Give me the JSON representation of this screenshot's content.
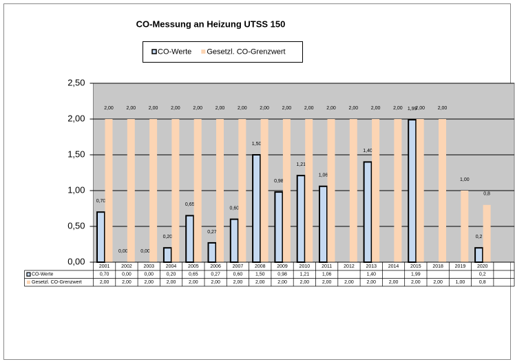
{
  "chart_data": {
    "type": "bar",
    "title": "CO-Messung an Heizung UTSS 150",
    "categories": [
      "2001",
      "2002",
      "2003",
      "2004",
      "2005",
      "2006",
      "2007",
      "2008",
      "2009",
      "2010",
      "2011",
      "2012",
      "2013",
      "2014",
      "2015",
      "2018",
      "2019",
      "2020"
    ],
    "series": [
      {
        "name": "CO-Werte",
        "color": "#c5d9f1",
        "values": [
          0.7,
          0.0,
          0.0,
          0.2,
          0.65,
          0.27,
          0.6,
          1.5,
          0.98,
          1.21,
          1.06,
          null,
          1.4,
          null,
          1.99,
          null,
          null,
          0.2
        ],
        "value_labels": [
          "0,70",
          "0,00",
          "0,00",
          "0,20",
          "0,65",
          "0,27",
          "0,60",
          "1,50",
          "0,98",
          "1,21",
          "1,06",
          null,
          "1,40",
          null,
          "1,99",
          null,
          null,
          "0,2"
        ]
      },
      {
        "name": "Gesetzl. CO-Grenzwert",
        "color": "#fcd5b4",
        "values": [
          2.0,
          2.0,
          2.0,
          2.0,
          2.0,
          2.0,
          2.0,
          2.0,
          2.0,
          2.0,
          2.0,
          2.0,
          2.0,
          2.0,
          2.0,
          2.0,
          1.0,
          0.8
        ],
        "value_labels": [
          "2,00",
          "2,00",
          "2,00",
          "2,00",
          "2,00",
          "2,00",
          "2,00",
          "2,00",
          "2,00",
          "2,00",
          "2,00",
          "2,00",
          "2,00",
          "2,00",
          "2,00",
          "2,00",
          "1,00",
          "0,8"
        ]
      }
    ],
    "ylim": [
      0,
      2.5
    ],
    "yticks": [
      {
        "value": 0,
        "label": "0,00"
      },
      {
        "value": 0.5,
        "label": "0,50"
      },
      {
        "value": 1,
        "label": "1,00"
      },
      {
        "value": 1.5,
        "label": "1,50"
      },
      {
        "value": 2,
        "label": "2,00"
      },
      {
        "value": 2.5,
        "label": "2,50"
      }
    ],
    "grid": true,
    "legend": "top",
    "data_table": true
  }
}
